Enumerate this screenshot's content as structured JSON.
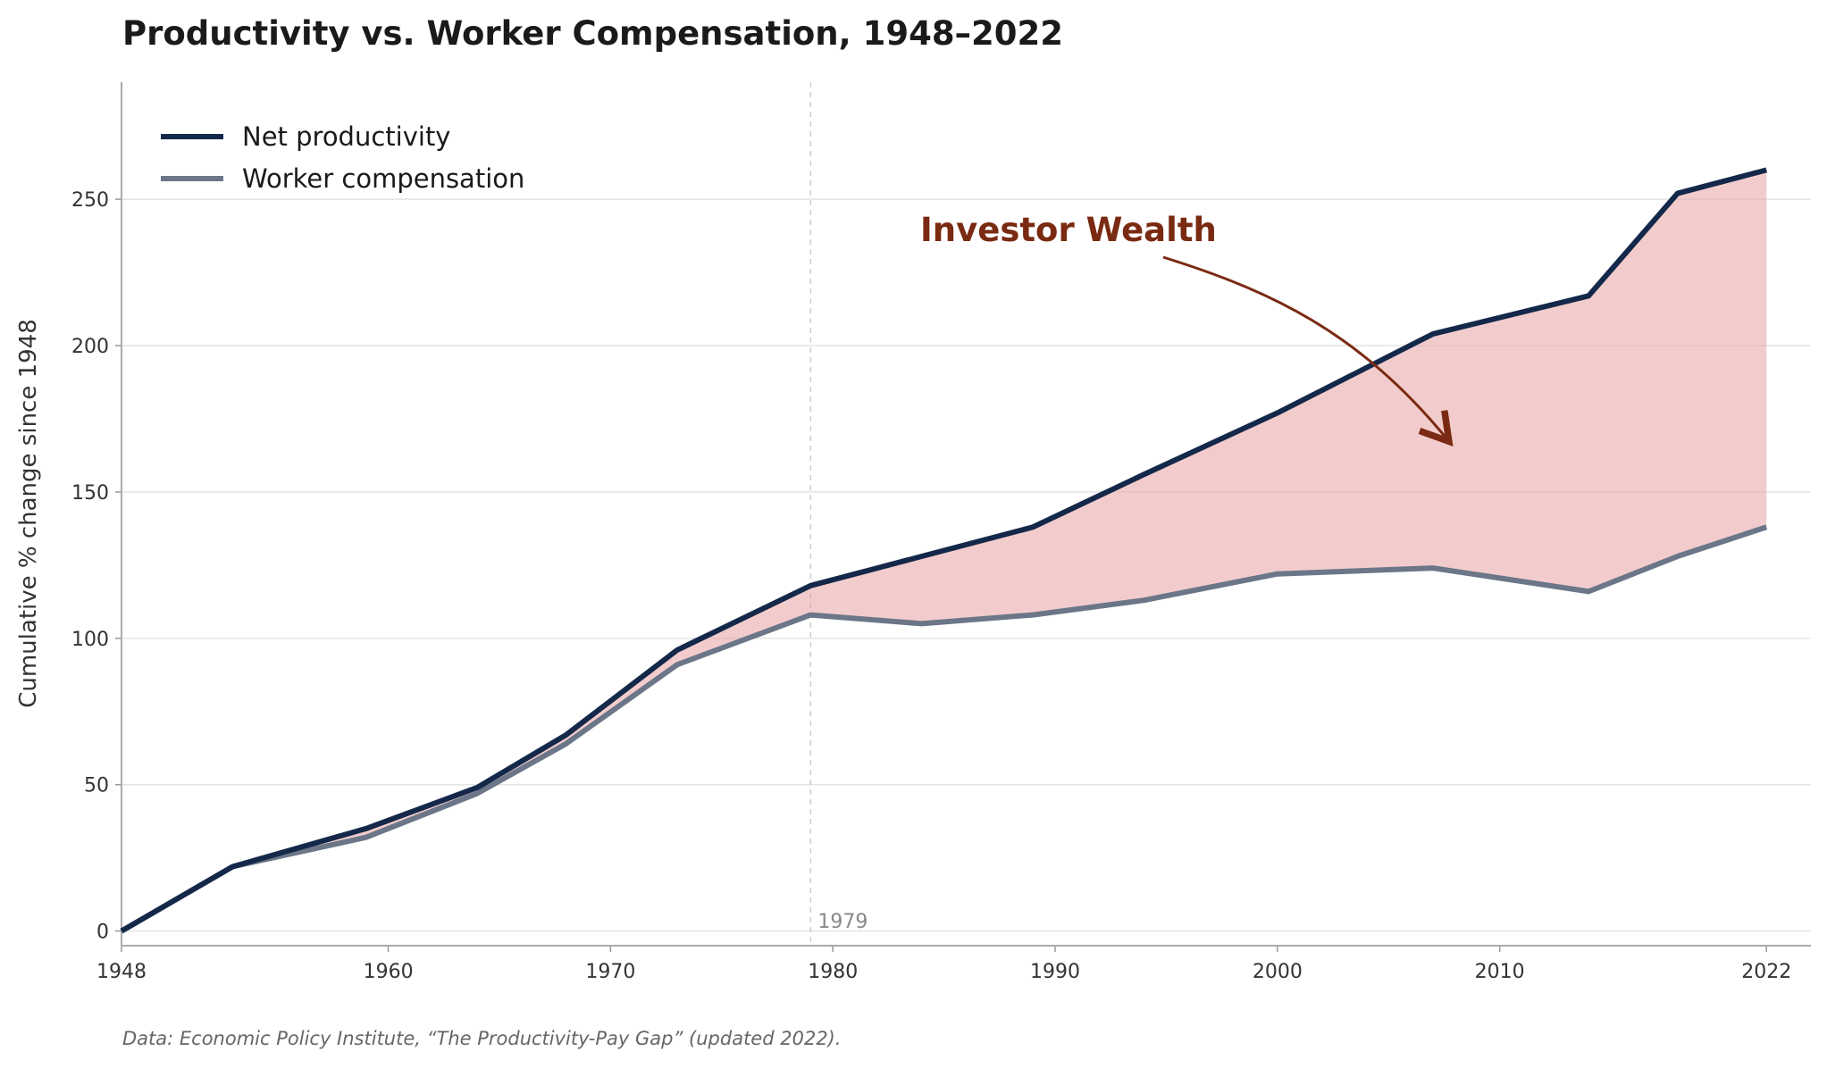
{
  "chart_data": {
    "type": "line",
    "title": "Productivity vs. Worker Compensation, 1948–2022",
    "y_label": "Cumulative % change since 1948",
    "source": "Data: Economic Policy Institute, “The Productivity-Pay Gap” (updated 2022).",
    "annotation": "Investor Wealth",
    "vline": {
      "x": 1979
    },
    "x": [
      1948,
      1953,
      1959,
      1964,
      1968,
      1973,
      1979,
      1984,
      1989,
      1994,
      2000,
      2007,
      2014,
      2018,
      2022
    ],
    "series": [
      {
        "name": "Net productivity",
        "color": "#14284a",
        "values": [
          0,
          22,
          35,
          49,
          67,
          96,
          118,
          128,
          138,
          156,
          177,
          204,
          217,
          252,
          260
        ]
      },
      {
        "name": "Worker compensation",
        "color": "#6b7688",
        "values": [
          0,
          22,
          32,
          47,
          64,
          91,
          108,
          105,
          108,
          113,
          122,
          124,
          116,
          128,
          138
        ]
      }
    ],
    "fill_between": {
      "color": "#e8a3a3"
    },
    "xlim": [
      1948,
      2024
    ],
    "ylim": [
      -5,
      290
    ],
    "xticks": [
      1948,
      1960,
      1970,
      1980,
      1990,
      2000,
      2010,
      2022
    ],
    "yticks": [
      0,
      50,
      100,
      150,
      200,
      250
    ],
    "grid": true,
    "legend": "upper left"
  }
}
